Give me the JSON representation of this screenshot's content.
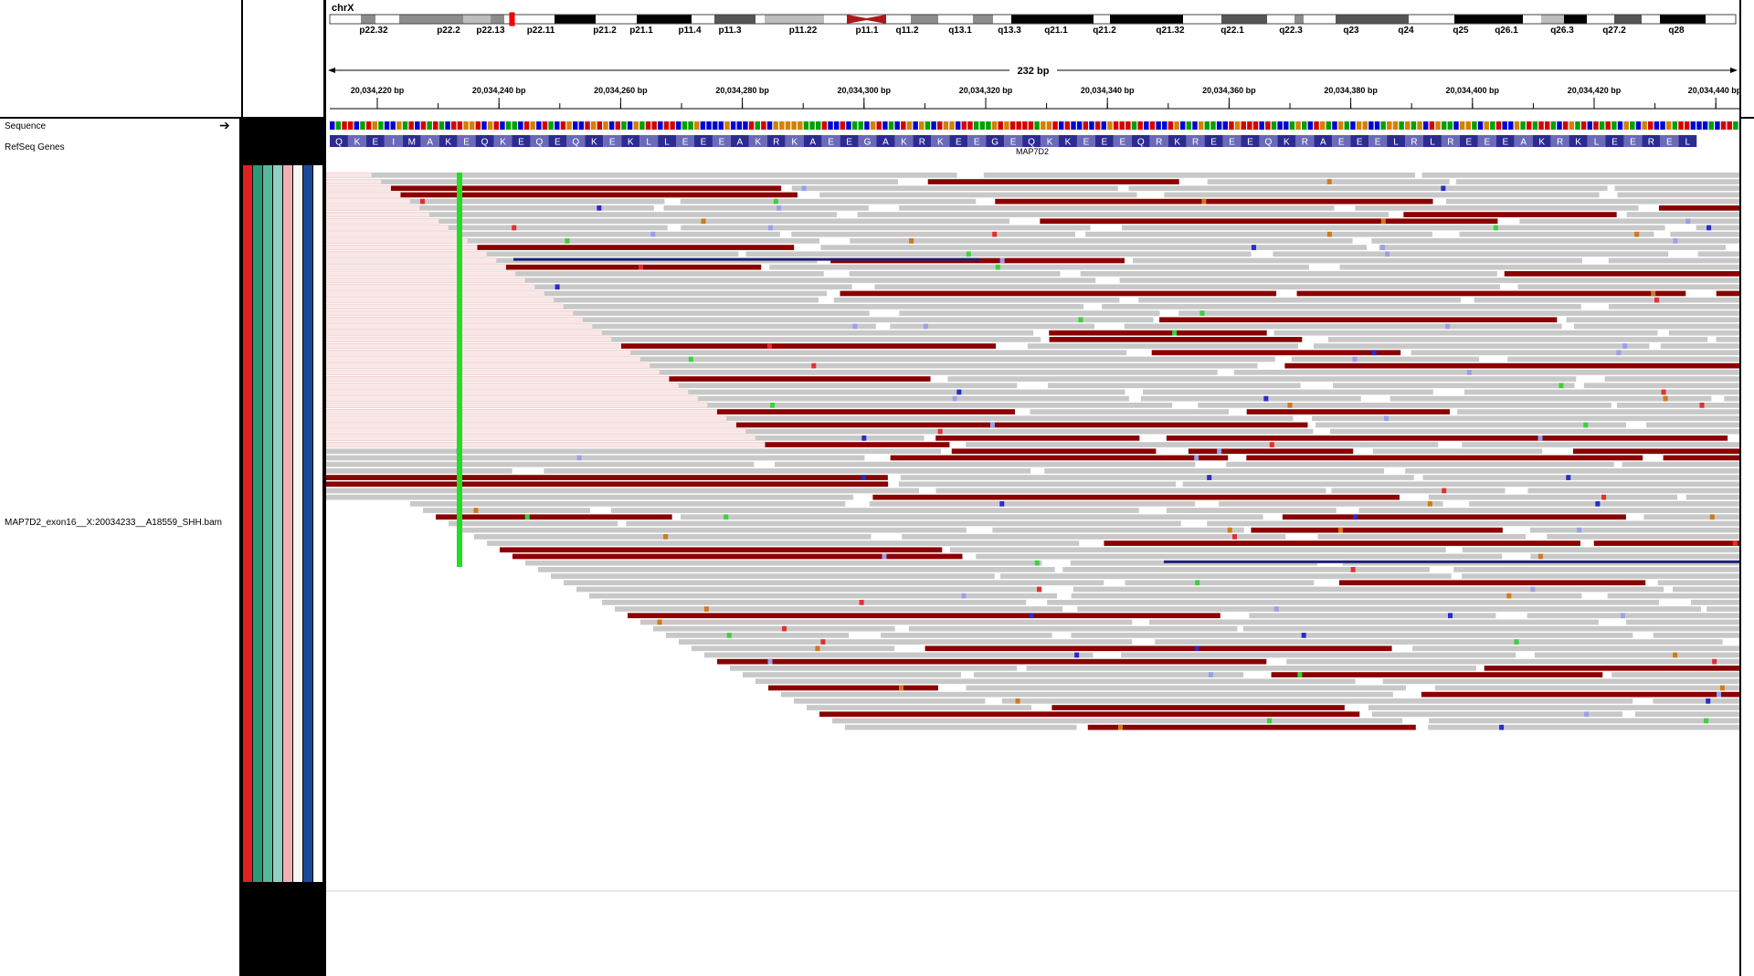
{
  "ideogram": {
    "chrom": "chrX",
    "bands": [
      "p22.32",
      "p22.2",
      "p22.13",
      "p22.11",
      "p21.2",
      "p21.1",
      "p11.4",
      "p11.3",
      "p11.22",
      "p11.1",
      "q11.2",
      "q13.1",
      "q13.3",
      "q21.1",
      "q21.2",
      "q21.32",
      "q22.1",
      "q22.3",
      "q23",
      "q24",
      "q25",
      "q26.1",
      "q26.3",
      "q27.2",
      "q28"
    ]
  },
  "ruler": {
    "span_label": "232 bp",
    "ticks": [
      "20,034,220 bp",
      "20,034,240 bp",
      "20,034,260 bp",
      "20,034,280 bp",
      "20,034,300 bp",
      "20,034,320 bp",
      "20,034,340 bp",
      "20,034,360 bp",
      "20,034,380 bp",
      "20,034,400 bp",
      "20,034,420 bp",
      "20,034,440 bp"
    ]
  },
  "tracks": {
    "sequence_label": "Sequence",
    "refseq_label": "RefSeq Genes",
    "bam_label": "MAP7D2_exon16__X:20034233__A18559_SHH.bam",
    "gene_name": "MAP7D2",
    "amino_acids": "QKEIMAKEQKEQEQKEKLLEEEAKRKAEEGAKRKEEGEQKKEEEQRKREEEQKRAEEELRLREEEAKRKLEEREL"
  },
  "colors": {
    "read_gray": "#c8c8c8",
    "read_red": "#8b0000",
    "read_blue": "#1e1e78",
    "snp_green": "#22dd22",
    "aa_dark": "#2c2c90",
    "aa_light": "#6a6ab8",
    "sample_attrs": [
      "#e02020",
      "#2a9a78",
      "#55b898",
      "#8fd0c0",
      "#f0b0b0",
      "#f5f5f5",
      "#1a4a9a",
      "#ffffff"
    ]
  }
}
